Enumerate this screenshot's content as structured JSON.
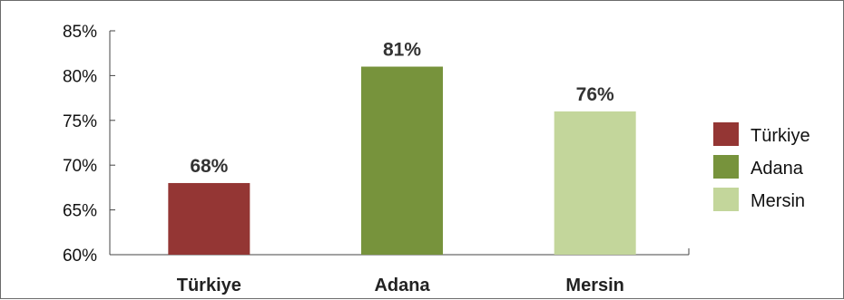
{
  "chart_data": {
    "type": "bar",
    "categories": [
      "Türkiye",
      "Adana",
      "Mersin"
    ],
    "values": [
      68,
      81,
      76
    ],
    "data_labels": [
      "68%",
      "81%",
      "76%"
    ],
    "colors": [
      "#943634",
      "#77933c",
      "#c3d69b"
    ],
    "ylim": [
      60,
      85
    ],
    "yticks": [
      60,
      65,
      70,
      75,
      80,
      85
    ],
    "ytick_labels": [
      "60%",
      "65%",
      "70%",
      "75%",
      "80%",
      "85%"
    ],
    "grid": false,
    "legend": {
      "position": "right",
      "entries": [
        "Türkiye",
        "Adana",
        "Mersin"
      ]
    }
  }
}
